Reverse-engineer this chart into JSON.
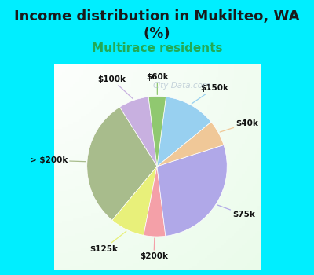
{
  "title": "Income distribution in Mukilteo, WA\n(%)",
  "subtitle": "Multirace residents",
  "subtitle_color": "#22aa55",
  "title_fontsize": 13,
  "subtitle_fontsize": 11,
  "background_color": "#00eeff",
  "chart_bg_top": "#f0f8f0",
  "chart_bg_bottom": "#d8f0e8",
  "watermark": "City-Data.com",
  "labels": [
    "$100k",
    "> $200k",
    "$125k",
    "$200k",
    "$75k",
    "$40k",
    "$150k",
    "$60k"
  ],
  "values": [
    7,
    30,
    8,
    5,
    28,
    6,
    12,
    4
  ],
  "colors": [
    "#c8b0e0",
    "#a8bc8c",
    "#e8f07a",
    "#f4a0a8",
    "#b0a8e8",
    "#f0c898",
    "#98d0f0",
    "#90c870"
  ],
  "startangle": 97,
  "label_distances": [
    1.32,
    1.28,
    1.3,
    1.28,
    1.28,
    1.28,
    1.28,
    1.28
  ]
}
